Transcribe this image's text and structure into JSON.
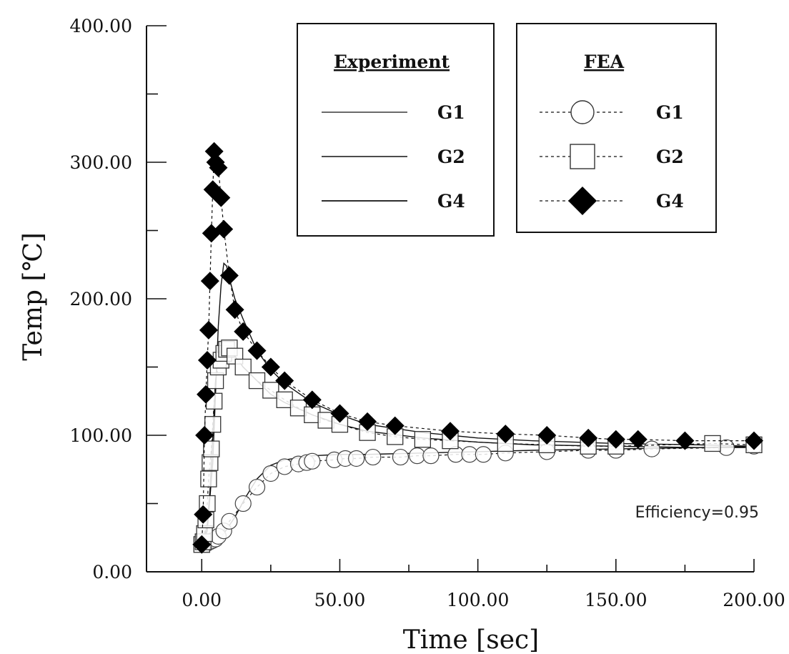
{
  "chart_data": {
    "type": "line",
    "xlabel": "Time [sec]",
    "ylabel": "Temp [℃]",
    "xlim": [
      -20,
      200
    ],
    "ylim": [
      0,
      400
    ],
    "x_ticks": [
      "0.00",
      "50.00",
      "100.00",
      "150.00",
      "200.00"
    ],
    "x_tick_values": [
      0,
      50,
      100,
      150,
      200
    ],
    "y_ticks": [
      "0.00",
      "100.00",
      "200.00",
      "300.00",
      "400.00"
    ],
    "y_tick_values": [
      0,
      100,
      200,
      300,
      400
    ],
    "grid": false,
    "annotation": "Efficiency=0.95",
    "legends": [
      {
        "title": "Experiment",
        "entries": [
          {
            "label": "G1",
            "style": "solid-line"
          },
          {
            "label": "G2",
            "style": "solid-line"
          },
          {
            "label": "G4",
            "style": "solid-line"
          }
        ]
      },
      {
        "title": "FEA",
        "entries": [
          {
            "label": "G1",
            "style": "dashed-open-circle"
          },
          {
            "label": "G2",
            "style": "dashed-open-square"
          },
          {
            "label": "G4",
            "style": "dashed-filled-diamond"
          }
        ]
      }
    ],
    "series": [
      {
        "name": "G1",
        "group": "Experiment",
        "style": "solid",
        "x": [
          0,
          2,
          5,
          8,
          12,
          16,
          20,
          25,
          30,
          40,
          50,
          60,
          80,
          100,
          120,
          150,
          180,
          200
        ],
        "y": [
          20,
          21,
          23,
          28,
          40,
          55,
          68,
          78,
          82,
          85,
          86,
          86,
          87,
          88,
          89,
          90,
          91,
          92
        ]
      },
      {
        "name": "G2",
        "group": "Experiment",
        "style": "solid",
        "x": [
          0,
          1,
          2,
          3,
          4,
          5,
          6,
          8,
          10,
          12,
          15,
          20,
          25,
          30,
          40,
          50,
          60,
          80,
          100,
          120,
          150,
          180,
          200
        ],
        "y": [
          20,
          25,
          35,
          60,
          100,
          140,
          158,
          165,
          164,
          158,
          150,
          140,
          130,
          124,
          115,
          108,
          103,
          98,
          95,
          93,
          92,
          91,
          91
        ]
      },
      {
        "name": "G4",
        "group": "Experiment",
        "style": "solid",
        "x": [
          0,
          2,
          4,
          5,
          6,
          7,
          8,
          9,
          10,
          12,
          15,
          20,
          25,
          30,
          40,
          50,
          60,
          80,
          100,
          120,
          150,
          180,
          200
        ],
        "y": [
          20,
          30,
          80,
          130,
          180,
          210,
          226,
          224,
          215,
          200,
          185,
          162,
          148,
          138,
          124,
          115,
          108,
          102,
          98,
          96,
          94,
          93,
          92
        ]
      },
      {
        "name": "G1",
        "group": "FEA",
        "marker": "circle",
        "x": [
          1,
          2,
          3,
          4,
          5,
          6,
          8,
          10,
          15,
          20,
          25,
          30,
          35,
          38,
          40,
          48,
          52,
          56,
          62,
          72,
          78,
          83,
          92,
          97,
          102,
          110,
          125,
          140,
          150,
          163,
          190,
          200
        ],
        "y": [
          20,
          21,
          22,
          23,
          24,
          26,
          30,
          37,
          50,
          62,
          72,
          77,
          79,
          80,
          81,
          82,
          83,
          83,
          84,
          84,
          85,
          85,
          86,
          86,
          86,
          87,
          88,
          89,
          89,
          90,
          91,
          92
        ]
      },
      {
        "name": "G2",
        "group": "FEA",
        "marker": "square",
        "x": [
          0,
          0.5,
          1,
          1.5,
          2,
          2.5,
          3,
          3.5,
          4,
          4.5,
          5,
          6,
          7,
          8,
          9,
          10,
          12,
          15,
          20,
          25,
          30,
          35,
          40,
          45,
          50,
          60,
          70,
          80,
          90,
          110,
          125,
          140,
          150,
          185,
          200
        ],
        "y": [
          20,
          22,
          28,
          38,
          50,
          68,
          80,
          90,
          108,
          125,
          140,
          150,
          155,
          160,
          163,
          164,
          158,
          150,
          140,
          133,
          126,
          120,
          115,
          111,
          108,
          102,
          99,
          97,
          96,
          94,
          93,
          92,
          92,
          94,
          93
        ]
      },
      {
        "name": "G4",
        "group": "FEA",
        "marker": "diamond",
        "x": [
          0,
          0.5,
          1,
          1.5,
          2,
          2.5,
          3,
          3.5,
          4,
          4.5,
          5,
          6,
          7,
          8,
          10,
          12,
          15,
          20,
          25,
          30,
          40,
          50,
          60,
          70,
          90,
          110,
          125,
          140,
          150,
          158,
          175,
          200
        ],
        "y": [
          20,
          42,
          100,
          130,
          155,
          177,
          213,
          248,
          280,
          308,
          300,
          296,
          274,
          251,
          217,
          192,
          176,
          162,
          150,
          140,
          126,
          116,
          110,
          107,
          103,
          101,
          100,
          98,
          97,
          97,
          96,
          96
        ]
      }
    ]
  }
}
